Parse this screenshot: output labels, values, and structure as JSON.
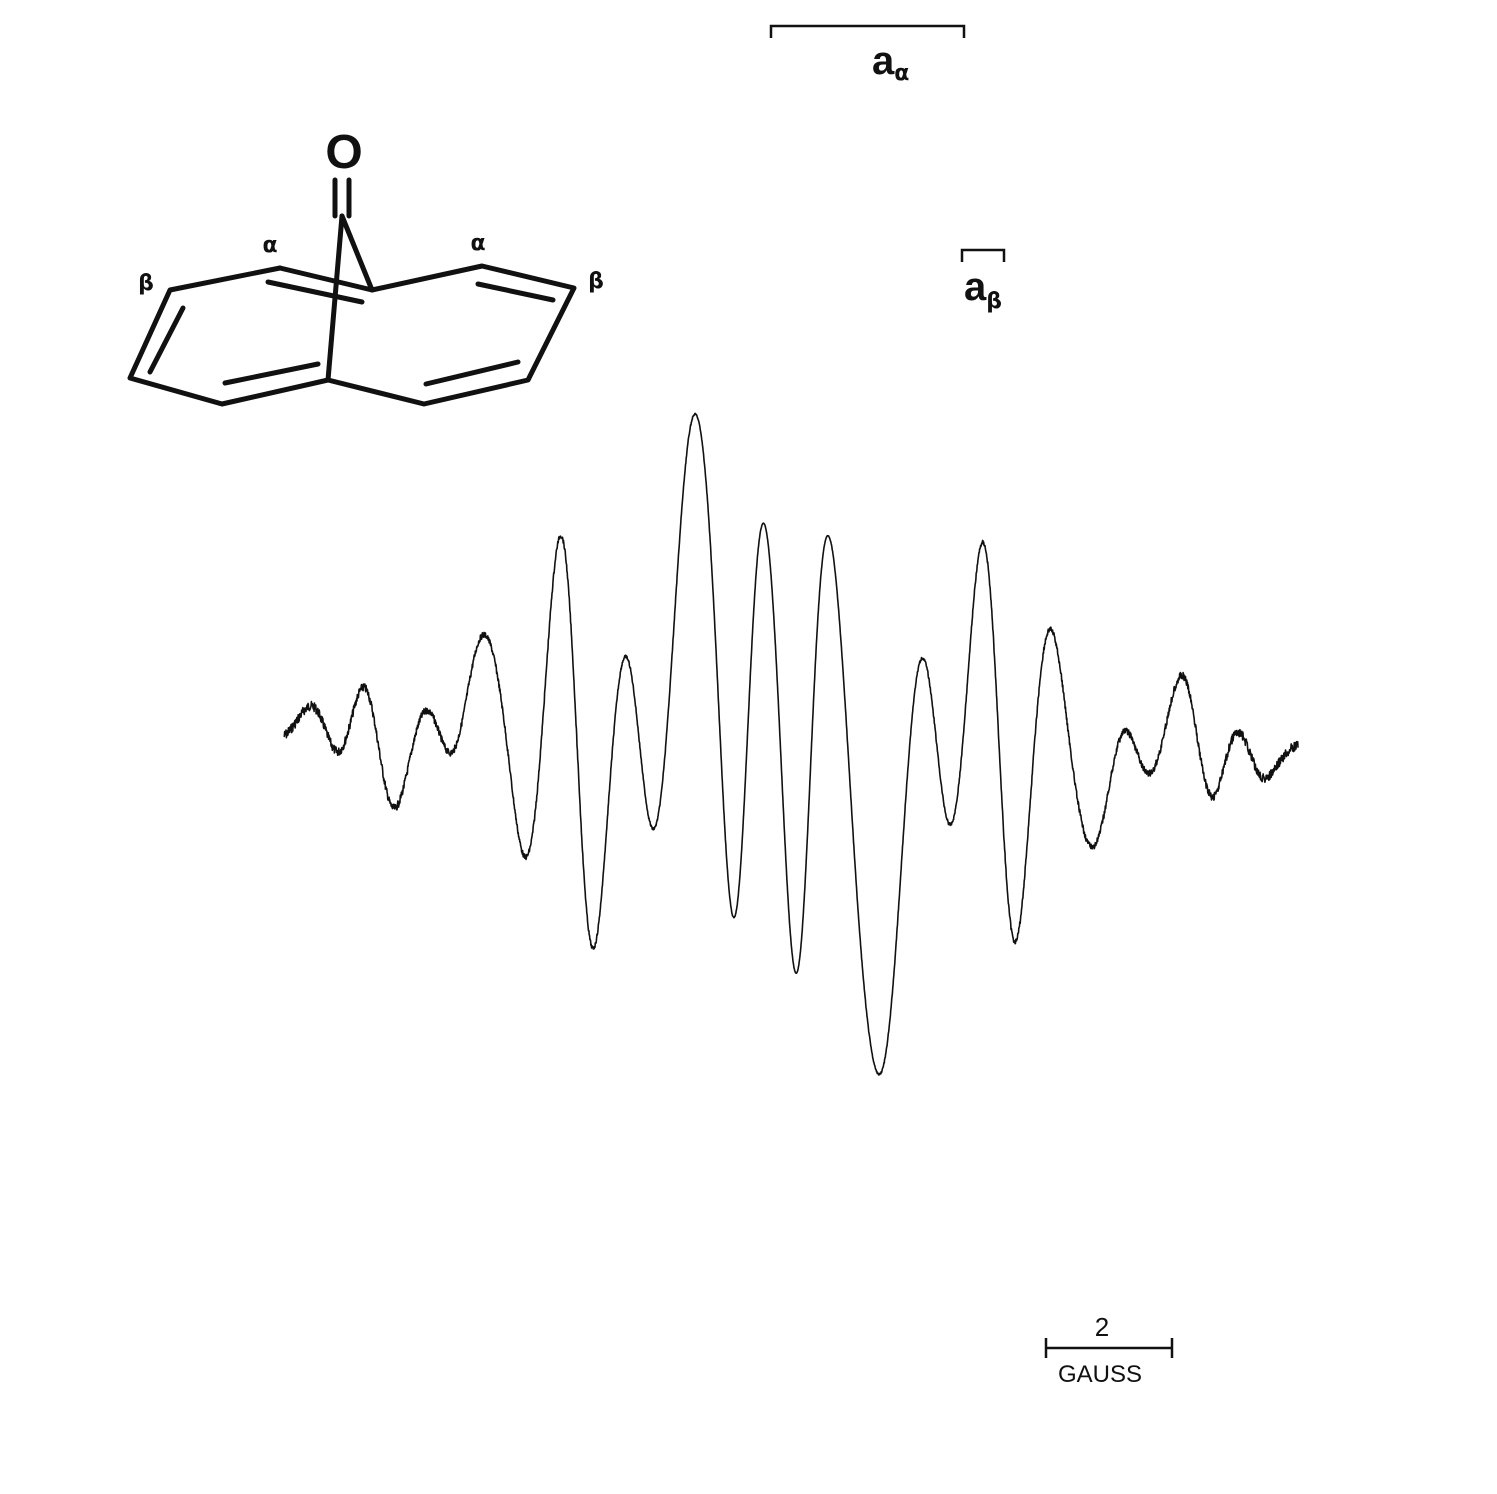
{
  "chart_data": {
    "type": "line",
    "title": "",
    "xlabel": "",
    "ylabel": "",
    "grid": false,
    "lines": [
      {
        "center": -1.47,
        "amp": 0.1
      },
      {
        "center": -0.98,
        "amp": 0.2
      },
      {
        "center": -0.37,
        "amp": 0.11
      },
      {
        "center": 0.12,
        "amp": 0.21
      },
      {
        "center": 0.35,
        "amp": 0.31
      },
      {
        "center": 0.96,
        "amp": 0.62
      },
      {
        "center": 1.57,
        "amp": 0.31
      },
      {
        "center": 2.18,
        "amp": 0.56
      },
      {
        "center": 2.41,
        "amp": 0.94
      },
      {
        "center": 2.79,
        "amp": 0.72
      },
      {
        "center": 3.02,
        "amp": 1.0
      },
      {
        "center": 3.4,
        "amp": 0.69
      },
      {
        "center": 3.63,
        "amp": 0.92
      },
      {
        "center": 3.86,
        "amp": 0.55
      },
      {
        "center": 4.47,
        "amp": 0.3
      },
      {
        "center": 5.08,
        "amp": 0.6
      },
      {
        "center": 5.69,
        "amp": 0.3
      },
      {
        "center": 5.92,
        "amp": 0.21
      },
      {
        "center": 6.41,
        "amp": 0.11
      },
      {
        "center": 7.02,
        "amp": 0.2
      },
      {
        "center": 7.51,
        "amp": 0.1
      }
    ],
    "linewidth": 0.17,
    "scale_bar": {
      "value": "2",
      "unit": "GAUSS"
    },
    "coupling_labels": {
      "a_alpha": {
        "main": "a",
        "sub": "α"
      },
      "a_beta": {
        "main": "a",
        "sub": "β"
      }
    }
  },
  "structure": {
    "oxygen": "O",
    "alpha_label": "α",
    "beta_label": "β"
  }
}
